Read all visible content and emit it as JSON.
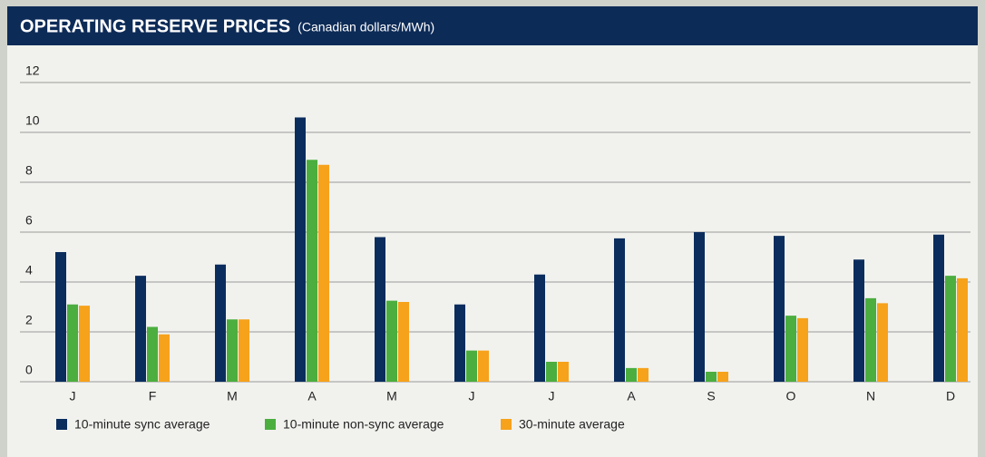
{
  "chart_data": {
    "type": "bar",
    "title": "OPERATING RESERVE PRICES",
    "subtitle": "(Canadian dollars/MWh)",
    "categories": [
      "J",
      "F",
      "M",
      "A",
      "M",
      "J",
      "J",
      "A",
      "S",
      "O",
      "N",
      "D"
    ],
    "series": [
      {
        "name": "10-minute sync average",
        "color": "#0b2d5e",
        "values": [
          5.2,
          4.25,
          4.7,
          10.6,
          5.8,
          3.1,
          4.3,
          5.75,
          6.0,
          5.85,
          4.9,
          5.9
        ]
      },
      {
        "name": "10-minute non-sync average",
        "color": "#4bae3f",
        "values": [
          3.1,
          2.2,
          2.5,
          8.9,
          3.25,
          1.25,
          0.8,
          0.55,
          0.4,
          2.65,
          3.35,
          4.25
        ]
      },
      {
        "name": "30-minute average",
        "color": "#f7a21b",
        "values": [
          3.05,
          1.9,
          2.5,
          8.7,
          3.2,
          1.25,
          0.8,
          0.55,
          0.4,
          2.55,
          3.15,
          4.15
        ]
      }
    ],
    "ylim": [
      0,
      12
    ],
    "yticks": [
      0,
      2,
      4,
      6,
      8,
      10,
      12
    ],
    "grid": true,
    "legend": "bottom-left"
  }
}
